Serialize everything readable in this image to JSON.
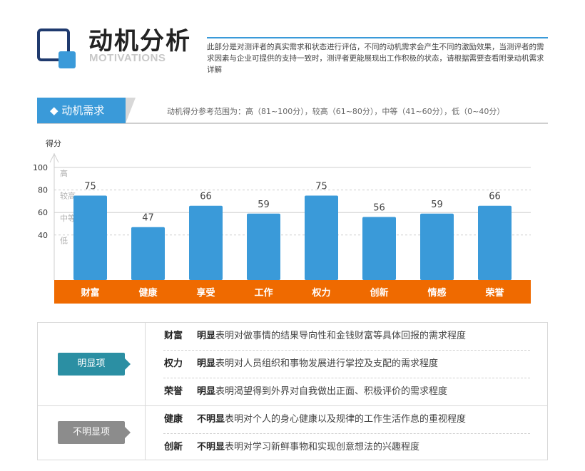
{
  "header": {
    "title_cn": "动机分析",
    "title_en": "MOTIVATIONS",
    "intro": "此部分是对测评者的真实需求和状态进行评估，不同的动机需求会产生不同的激励效果，当测评者的需求因素与企业可提供的支持一致时，测评者更能展现出工作积极的状态，请根据需要查看附录动机需求详解"
  },
  "section": {
    "tab_label": "◆ 动机需求",
    "note": "动机得分参考范围为：高（81~100分），较高（61~80分），中等（41~60分），低（0~40分）"
  },
  "chart_data": {
    "type": "bar",
    "ylabel": "得分",
    "ylim": [
      0,
      100
    ],
    "yticks": [
      "100",
      "80",
      "60",
      "40"
    ],
    "levels": [
      "高",
      "较高",
      "中等",
      "低"
    ],
    "categories": [
      "财富",
      "健康",
      "享受",
      "工作",
      "权力",
      "创新",
      "情感",
      "荣誉"
    ],
    "values": [
      75,
      47,
      66,
      59,
      75,
      56,
      59,
      66
    ],
    "bar_color": "#3a9ad9",
    "band_color": "#ef6a00",
    "legend": "none"
  },
  "table": {
    "strong_label": "明显项",
    "weak_label": "不明显项",
    "rows": [
      {
        "key": "财富",
        "prefix": "明显",
        "desc": "表明对做事情的结果导向性和金钱财富等具体回报的需求程度"
      },
      {
        "key": "权力",
        "prefix": "明显",
        "desc": "表明对人员组织和事物发展进行掌控及支配的需求程度"
      },
      {
        "key": "荣誉",
        "prefix": "明显",
        "desc": "表明渴望得到外界对自我做出正面、积极评价的需求程度"
      },
      {
        "key": "健康",
        "prefix": "不明显",
        "desc": "表明对个人的身心健康以及规律的工作生活作息的重视程度"
      },
      {
        "key": "创新",
        "prefix": "不明显",
        "desc": "表明对学习新鲜事物和实现创意想法的兴趣程度"
      }
    ]
  },
  "colors": {
    "accent": "#3a9ad9",
    "navy": "#1f3a6e",
    "strong": "#2b8fa3",
    "weak": "#8c8c8c"
  }
}
